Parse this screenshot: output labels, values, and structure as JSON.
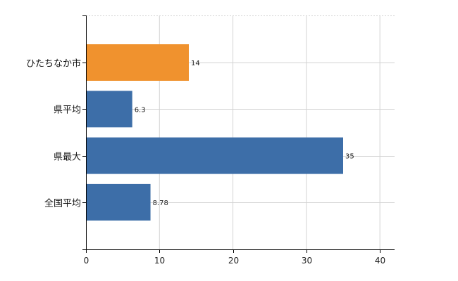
{
  "chart_data": {
    "type": "bar",
    "orientation": "horizontal",
    "title": "",
    "xlabel": "",
    "ylabel": "",
    "categories": [
      "ひたちなか市",
      "県平均",
      "県最大",
      "全国平均"
    ],
    "values": [
      14,
      6.3,
      35,
      8.78
    ],
    "value_labels": [
      "14",
      "6.3",
      "35",
      "8.78"
    ],
    "bar_colors": [
      "#f0922e",
      "#3d6ea8",
      "#3d6ea8",
      "#3d6ea8"
    ],
    "xlim": [
      0,
      42
    ],
    "xticks": [
      0,
      10,
      20,
      30,
      40
    ],
    "xtick_labels": [
      "0",
      "10",
      "20",
      "30",
      "40"
    ],
    "grid": true,
    "grid_color": "#d3d3d3",
    "axis_color": "#000000",
    "legend": false
  }
}
